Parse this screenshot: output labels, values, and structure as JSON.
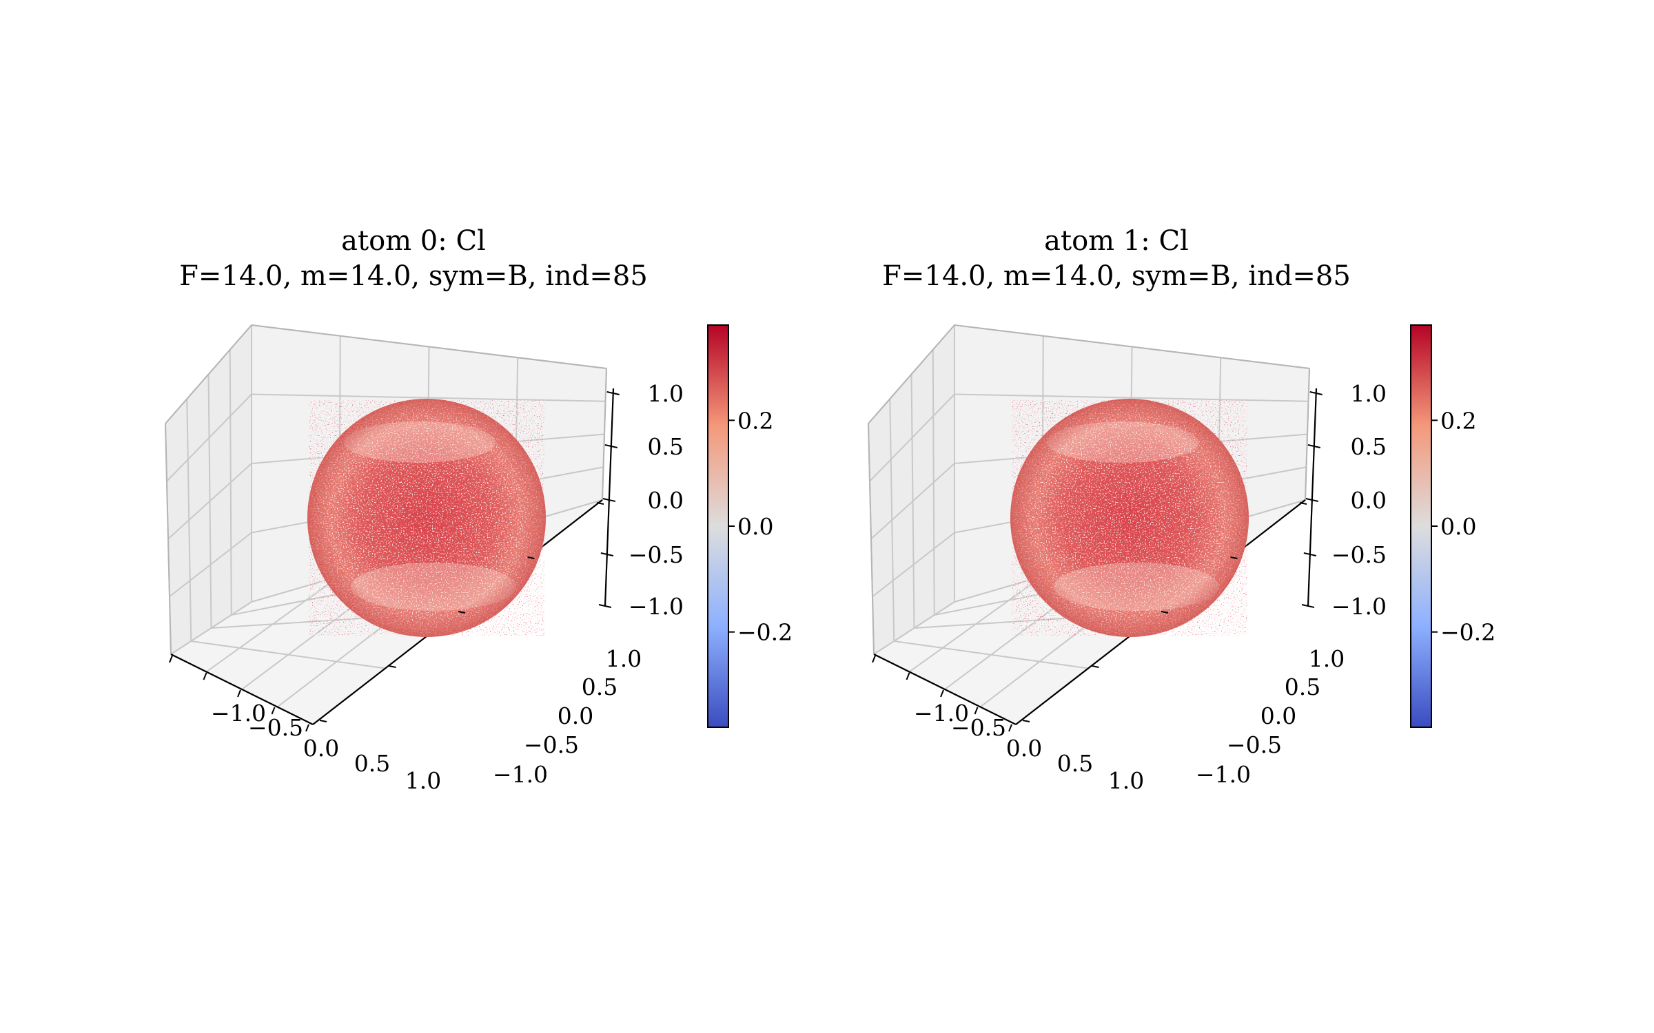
{
  "chart_data": [
    {
      "type": "surface3d",
      "title_line1": "atom 0: Cl",
      "title_line2": "F=14.0, m=14.0, sym=B, ind=85",
      "x_ticks": [
        "−1.0",
        "−0.5",
        "0.0",
        "0.5",
        "1.0"
      ],
      "y_ticks": [
        "−1.0",
        "−0.5",
        "0.0",
        "0.5",
        "1.0"
      ],
      "z_ticks": [
        "−1.0",
        "−0.5",
        "0.0",
        "0.5",
        "1.0"
      ],
      "xlim": [
        -1,
        1
      ],
      "ylim": [
        -1,
        1
      ],
      "zlim": [
        -1,
        1
      ],
      "surface": "unit sphere",
      "colormap": "coolwarm",
      "colorbar": {
        "vmin": -0.38,
        "vmax": 0.38,
        "ticks": [
          -0.2,
          0.0,
          0.2
        ],
        "tick_labels": [
          "−0.2",
          "0.0",
          "0.2"
        ]
      },
      "grid": true
    },
    {
      "type": "surface3d",
      "title_line1": "atom 1: Cl",
      "title_line2": "F=14.0, m=14.0, sym=B, ind=85",
      "x_ticks": [
        "−1.0",
        "−0.5",
        "0.0",
        "0.5",
        "1.0"
      ],
      "y_ticks": [
        "−1.0",
        "−0.5",
        "0.0",
        "0.5",
        "1.0"
      ],
      "z_ticks": [
        "−1.0",
        "−0.5",
        "0.0",
        "0.5",
        "1.0"
      ],
      "xlim": [
        -1,
        1
      ],
      "ylim": [
        -1,
        1
      ],
      "zlim": [
        -1,
        1
      ],
      "surface": "unit sphere",
      "colormap": "coolwarm",
      "colorbar": {
        "vmin": -0.38,
        "vmax": 0.38,
        "ticks": [
          -0.2,
          0.0,
          0.2
        ],
        "tick_labels": [
          "−0.2",
          "0.0",
          "0.2"
        ]
      },
      "grid": true
    }
  ],
  "colors": {
    "pane": "#f2f2f2",
    "grid": "#c8c8c8",
    "sphere_dark": "#c0262f",
    "sphere_light": "#f5c4ab",
    "cmap_low": "#3b4cc0",
    "cmap_mid": "#dddddd",
    "cmap_high": "#b40426"
  }
}
